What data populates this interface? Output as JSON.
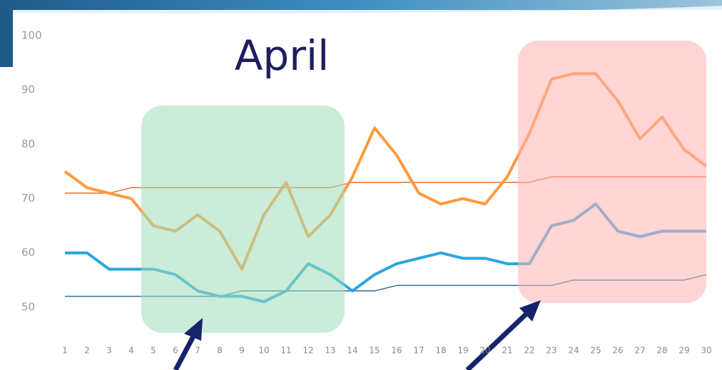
{
  "chart_data": {
    "type": "line",
    "title": "April",
    "categories": [
      "1",
      "2",
      "3",
      "4",
      "5",
      "6",
      "7",
      "8",
      "9",
      "10",
      "11",
      "12",
      "13",
      "14",
      "15",
      "16",
      "17",
      "18",
      "19",
      "20",
      "21",
      "22",
      "23",
      "24",
      "25",
      "26",
      "27",
      "28",
      "29",
      "30"
    ],
    "series": [
      {
        "color": "#ff9a3c",
        "line_width": 4,
        "values": [
          75,
          72,
          71,
          70,
          65,
          64,
          67,
          64,
          57,
          67,
          73,
          63,
          67,
          74,
          83,
          78,
          71,
          69,
          70,
          69,
          74,
          82,
          92,
          93,
          93,
          88,
          81,
          85,
          79,
          76
        ]
      },
      {
        "color": "#2aa6dc",
        "line_width": 4,
        "values": [
          60,
          60,
          57,
          57,
          57,
          56,
          53,
          52,
          52,
          51,
          53,
          58,
          56,
          53,
          56,
          58,
          59,
          60,
          59,
          59,
          58,
          58,
          65,
          66,
          69,
          64,
          63,
          64,
          64,
          64
        ]
      },
      {
        "color": "#e9702a",
        "line_width": 1.5,
        "values": [
          71,
          71,
          71,
          72,
          72,
          72,
          72,
          72,
          72,
          72,
          72,
          72,
          72,
          73,
          73,
          73,
          73,
          73,
          73,
          73,
          73,
          73,
          74,
          74,
          74,
          74,
          74,
          74,
          74,
          74
        ]
      },
      {
        "color": "#2e6f8e",
        "line_width": 1.5,
        "values": [
          52,
          52,
          52,
          52,
          52,
          52,
          52,
          52,
          53,
          53,
          53,
          53,
          53,
          53,
          53,
          54,
          54,
          54,
          54,
          54,
          54,
          54,
          54,
          55,
          55,
          55,
          55,
          55,
          55,
          56
        ]
      }
    ],
    "ylim": [
      45,
      100
    ],
    "yticks": [
      50,
      60,
      70,
      80,
      90,
      100
    ]
  }
}
